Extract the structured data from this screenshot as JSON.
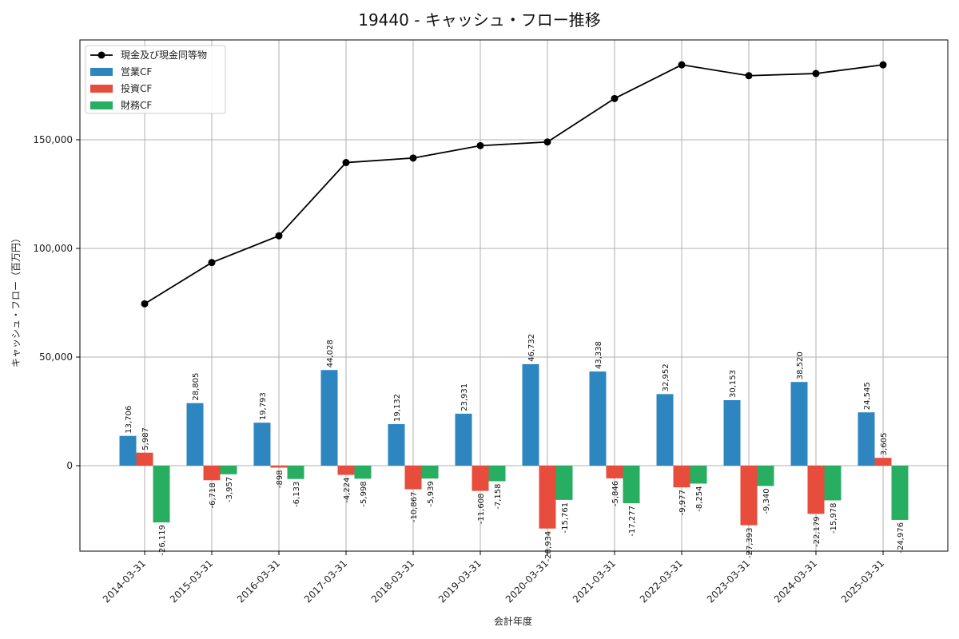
{
  "chart_data": {
    "type": "bar",
    "title": "19440 - キャッシュ・フロー推移",
    "xlabel": "会計年度",
    "ylabel": "キャッシュ・フロー（百万円）",
    "categories": [
      "2014-03-31",
      "2015-03-31",
      "2016-03-31",
      "2017-03-31",
      "2018-03-31",
      "2019-03-31",
      "2020-03-31",
      "2021-03-31",
      "2022-03-31",
      "2023-03-31",
      "2024-03-31",
      "2025-03-31"
    ],
    "ylim": [
      -40000,
      195000
    ],
    "yticks": [
      0,
      50000,
      100000,
      150000
    ],
    "ytick_labels": [
      "0",
      "50,000",
      "100,000",
      "150,000"
    ],
    "grid": true,
    "legend_position": "top-left",
    "series": [
      {
        "name": "営業CF",
        "kind": "bar",
        "color": "#2e86c1",
        "values": [
          13706,
          28805,
          19793,
          44028,
          19132,
          23931,
          46732,
          43338,
          32952,
          30153,
          38520,
          24545
        ],
        "labels": [
          "13,706",
          "28,805",
          "19,793",
          "44,028",
          "19,132",
          "23,931",
          "46,732",
          "43,338",
          "32,952",
          "30,153",
          "38,520",
          "24,545"
        ]
      },
      {
        "name": "投資CF",
        "kind": "bar",
        "color": "#e74c3c",
        "values": [
          5987,
          -6718,
          -898,
          -4224,
          -10867,
          -11608,
          -28934,
          -5846,
          -9977,
          -27393,
          -22179,
          3605
        ],
        "labels": [
          "5,987",
          "-6,718",
          "-898",
          "-4,224",
          "-10,867",
          "-11,608",
          "-28,934",
          "-5,846",
          "-9,977",
          "-27,393",
          "-22,179",
          "3,605"
        ]
      },
      {
        "name": "財務CF",
        "kind": "bar",
        "color": "#27ae60",
        "values": [
          -26119,
          -3957,
          -6133,
          -5998,
          -5939,
          -7158,
          -15761,
          -17277,
          -8254,
          -9340,
          -15978,
          -24976
        ],
        "labels": [
          "-26,119",
          "-3,957",
          "-6,133",
          "-5,998",
          "-5,939",
          "-7,158",
          "-15,761",
          "-17,277",
          "-8,254",
          "-9,340",
          "-15,978",
          "-24,976"
        ]
      },
      {
        "name": "現金及び現金同等物",
        "kind": "line",
        "color": "#000000",
        "values": [
          74500,
          93500,
          105800,
          139500,
          141600,
          147300,
          149000,
          169000,
          184500,
          179500,
          180500,
          184500
        ]
      }
    ]
  }
}
